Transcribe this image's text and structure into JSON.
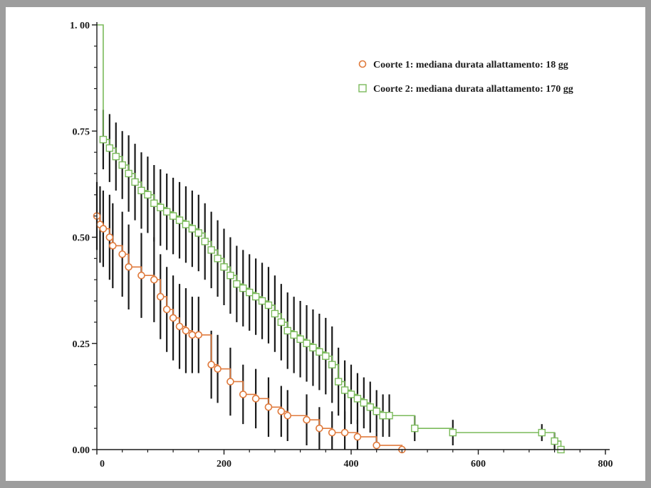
{
  "chart_data": {
    "type": "line",
    "subtype": "kaplan-meier survival with confidence intervals",
    "title": "",
    "xlabel": "",
    "ylabel": "",
    "xlim": [
      0,
      800
    ],
    "ylim": [
      0,
      1
    ],
    "x_ticks": [
      0,
      200,
      400,
      600,
      800
    ],
    "x_tick_labels": [
      "0",
      "200",
      "400",
      "600",
      "800"
    ],
    "y_ticks": [
      0,
      0.25,
      0.5,
      0.75,
      1.0
    ],
    "y_tick_labels": [
      "0.00",
      "0.25",
      "0.50",
      "0.75",
      "1. 00"
    ],
    "grid": false,
    "legend_position": "top-right",
    "series": [
      {
        "name": "Coorte 1: mediana durata allattamento: 18 gg",
        "color": "#e07a3c",
        "marker": "circle",
        "x": [
          0,
          5,
          10,
          20,
          25,
          40,
          50,
          70,
          90,
          100,
          110,
          120,
          130,
          140,
          150,
          160,
          180,
          190,
          210,
          230,
          250,
          270,
          290,
          300,
          330,
          350,
          370,
          390,
          410,
          440,
          480
        ],
        "y": [
          0.55,
          0.53,
          0.52,
          0.5,
          0.48,
          0.46,
          0.43,
          0.41,
          0.4,
          0.36,
          0.33,
          0.31,
          0.29,
          0.28,
          0.27,
          0.27,
          0.2,
          0.19,
          0.16,
          0.13,
          0.12,
          0.1,
          0.09,
          0.08,
          0.07,
          0.05,
          0.04,
          0.04,
          0.03,
          0.01,
          0.0
        ],
        "ci_half_width": [
          0.08,
          0.09,
          0.09,
          0.1,
          0.1,
          0.1,
          0.1,
          0.1,
          0.1,
          0.1,
          0.1,
          0.1,
          0.1,
          0.1,
          0.09,
          0.09,
          0.08,
          0.08,
          0.08,
          0.07,
          0.07,
          0.07,
          0.06,
          0.06,
          0.06,
          0.05,
          0.05,
          0.05,
          0.04,
          0.03,
          0.0
        ]
      },
      {
        "name": "Coorte 2: mediana durata allattamento: 170 gg",
        "color": "#7aba5a",
        "marker": "square",
        "x": [
          0,
          10,
          20,
          30,
          40,
          50,
          60,
          70,
          80,
          90,
          100,
          110,
          120,
          130,
          140,
          150,
          160,
          170,
          180,
          190,
          200,
          210,
          220,
          230,
          240,
          250,
          260,
          270,
          280,
          290,
          300,
          310,
          320,
          330,
          340,
          350,
          360,
          370,
          380,
          390,
          400,
          410,
          420,
          430,
          440,
          450,
          460,
          500,
          560,
          700,
          720,
          730
        ],
        "y": [
          1.0,
          0.73,
          0.71,
          0.69,
          0.67,
          0.65,
          0.63,
          0.61,
          0.6,
          0.58,
          0.57,
          0.56,
          0.55,
          0.54,
          0.53,
          0.52,
          0.51,
          0.49,
          0.47,
          0.45,
          0.43,
          0.41,
          0.39,
          0.38,
          0.37,
          0.36,
          0.35,
          0.34,
          0.32,
          0.3,
          0.28,
          0.27,
          0.26,
          0.25,
          0.24,
          0.23,
          0.22,
          0.2,
          0.16,
          0.14,
          0.13,
          0.12,
          0.11,
          0.1,
          0.09,
          0.08,
          0.08,
          0.05,
          0.04,
          0.04,
          0.02,
          0.0
        ],
        "ci_half_width": [
          0.0,
          0.07,
          0.08,
          0.08,
          0.08,
          0.09,
          0.09,
          0.09,
          0.09,
          0.09,
          0.09,
          0.09,
          0.09,
          0.09,
          0.09,
          0.09,
          0.09,
          0.09,
          0.09,
          0.09,
          0.09,
          0.09,
          0.09,
          0.09,
          0.09,
          0.09,
          0.09,
          0.09,
          0.09,
          0.09,
          0.09,
          0.09,
          0.09,
          0.09,
          0.09,
          0.09,
          0.09,
          0.09,
          0.08,
          0.07,
          0.07,
          0.06,
          0.06,
          0.06,
          0.05,
          0.05,
          0.05,
          0.03,
          0.03,
          0.02,
          0.02,
          0.0
        ]
      }
    ]
  }
}
